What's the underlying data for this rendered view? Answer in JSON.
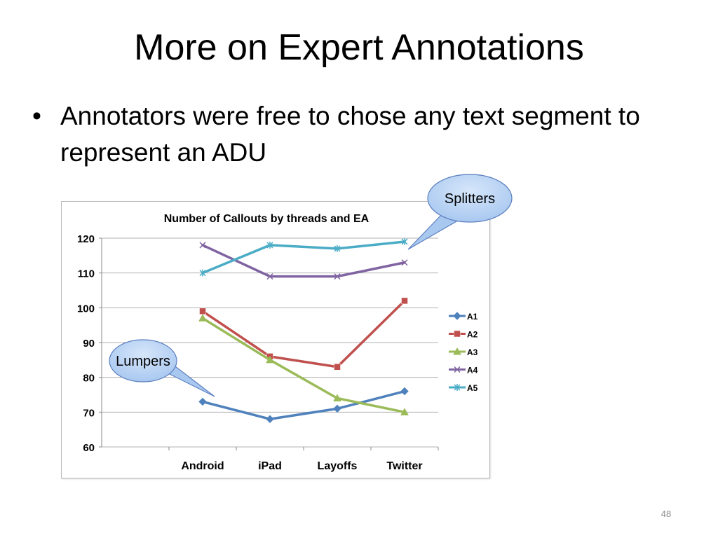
{
  "slide": {
    "title": "More on Expert Annotations",
    "bullet": "Annotators were free to chose any text segment to represent an ADU",
    "bullet_marker": "•",
    "page_number": "48"
  },
  "callouts": {
    "splitters": "Splitters",
    "lumpers": "Lumpers",
    "fill_color": "#a9c8f0",
    "stroke_color": "#5b7fbf"
  },
  "chart_data": {
    "type": "line",
    "title": "Number of Callouts by threads and EA",
    "xlabel": "",
    "ylabel": "",
    "categories": [
      "Android",
      "iPad",
      "Layoffs",
      "Twitter"
    ],
    "ylim": [
      60,
      120
    ],
    "yticks": [
      60,
      70,
      80,
      90,
      100,
      110,
      120
    ],
    "grid": true,
    "legend_position": "right",
    "series": [
      {
        "name": "A1",
        "values": [
          73,
          68,
          71,
          76
        ],
        "color": "#4f81bd",
        "marker": "diamond"
      },
      {
        "name": "A2",
        "values": [
          99,
          86,
          83,
          102
        ],
        "color": "#c0504d",
        "marker": "square"
      },
      {
        "name": "A3",
        "values": [
          97,
          85,
          74,
          70
        ],
        "color": "#9bbb59",
        "marker": "triangle"
      },
      {
        "name": "A4",
        "values": [
          118,
          109,
          109,
          113
        ],
        "color": "#8064a2",
        "marker": "x"
      },
      {
        "name": "A5",
        "values": [
          110,
          118,
          117,
          119
        ],
        "color": "#4bacc6",
        "marker": "star"
      }
    ]
  }
}
